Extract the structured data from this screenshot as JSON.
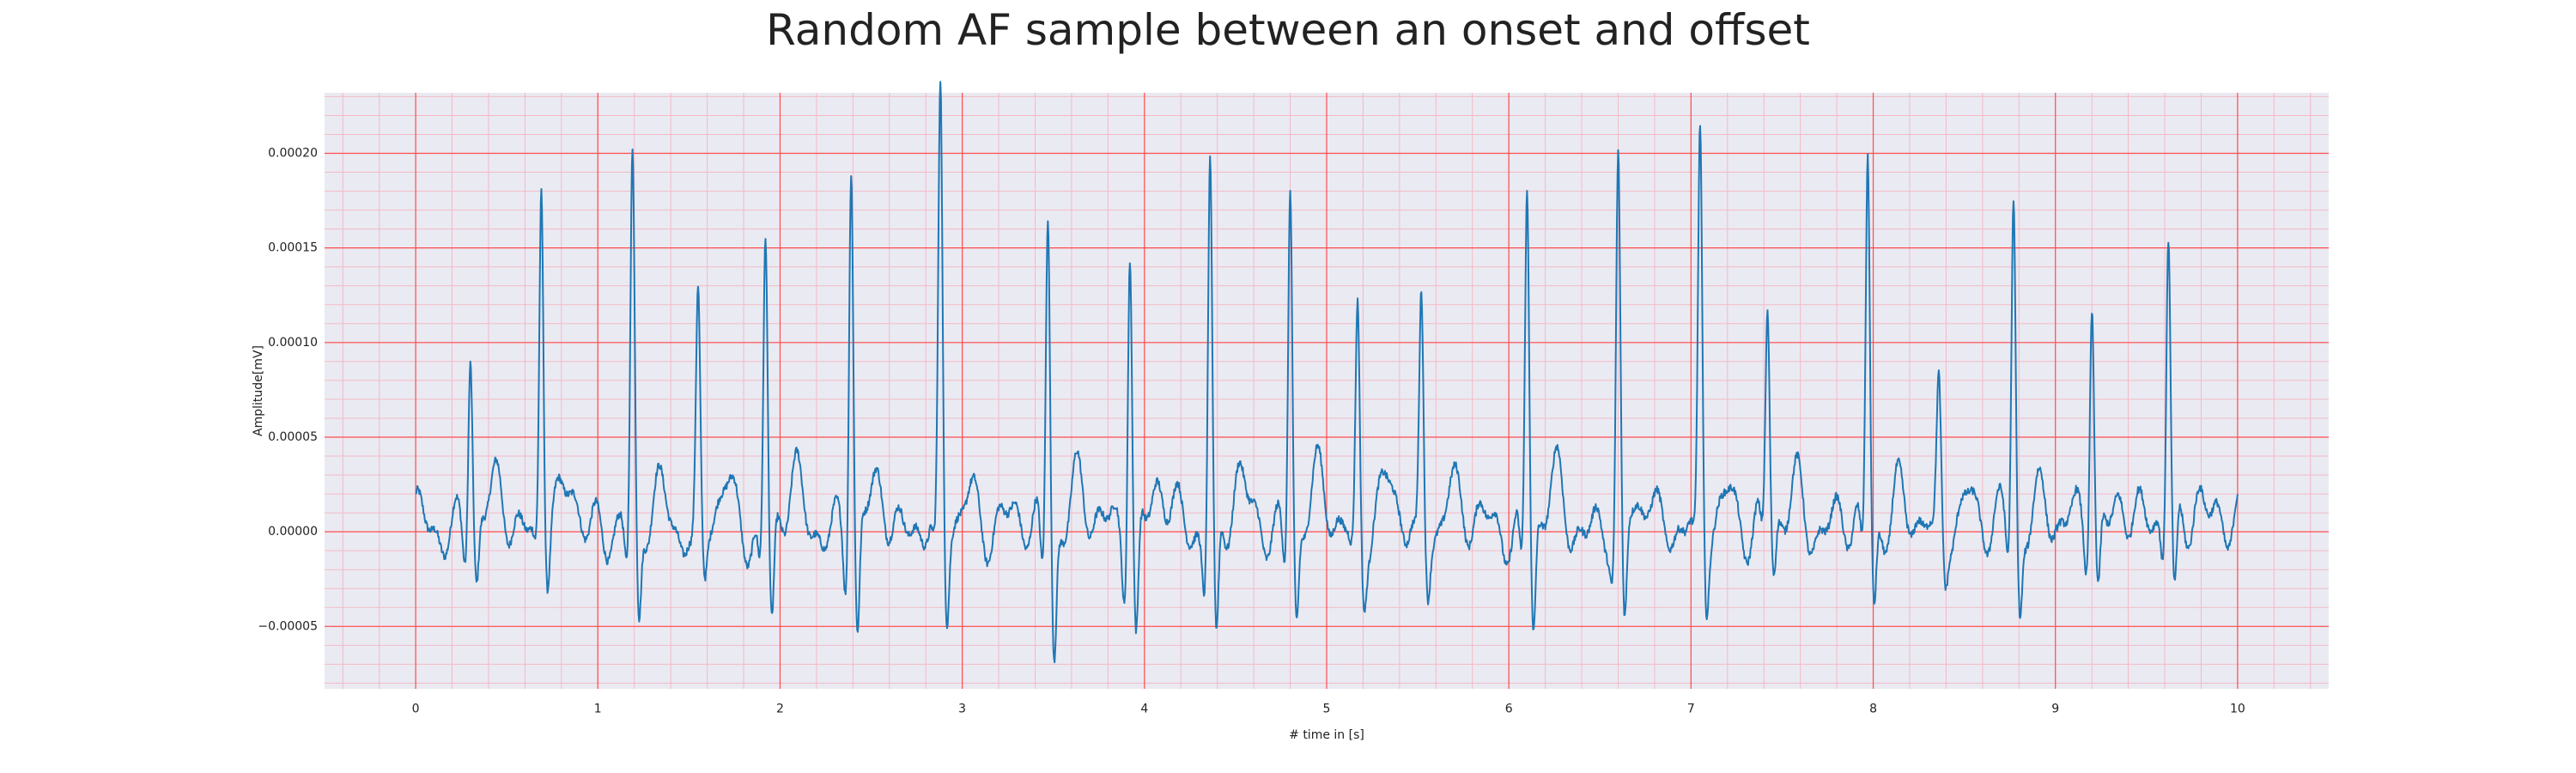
{
  "chart_data": {
    "type": "line",
    "title": "Random AF sample between an onset and offset",
    "xlabel": "# time in [s]",
    "ylabel": "Amplitude[mV]",
    "xlim": [
      -0.5,
      10.5
    ],
    "ylim": [
      -8.3e-05,
      0.000232
    ],
    "x_ticks": [
      0,
      1,
      2,
      3,
      4,
      5,
      6,
      7,
      8,
      9,
      10
    ],
    "x_tick_labels": [
      "0",
      "1",
      "2",
      "3",
      "4",
      "5",
      "6",
      "7",
      "8",
      "9",
      "10"
    ],
    "y_ticks": [
      -5e-05,
      0,
      5e-05,
      0.0001,
      0.00015,
      0.0002
    ],
    "y_tick_labels": [
      "−0.00005",
      "0.00000",
      "0.00005",
      "0.00010",
      "0.00015",
      "0.00020"
    ],
    "grid": true,
    "minor_grid": true,
    "colors": {
      "background": "#eaeaf2",
      "major_grid": "#ff4d4d",
      "minor_grid": "#f3b9c6",
      "line": "#1f77b4"
    },
    "series": [
      {
        "x_start": 0,
        "x_end": 10,
        "beat_times": [
          0.3,
          0.69,
          1.19,
          1.55,
          1.92,
          2.39,
          2.88,
          3.47,
          3.92,
          4.36,
          4.8,
          5.17,
          5.52,
          6.1,
          6.6,
          7.05,
          7.42,
          7.97,
          8.36,
          8.77,
          9.2,
          9.62
        ],
        "beat_peaks": [
          9.6e-05,
          0.000186,
          0.000188,
          0.000108,
          0.000153,
          0.000198,
          0.00022,
          0.000174,
          0.000161,
          0.000197,
          0.000188,
          0.000114,
          0.000115,
          0.00018,
          0.000184,
          0.000198,
          0.000111,
          0.000193,
          6.3e-05,
          0.000171,
          0.000124,
          0.000155
        ],
        "beat_troughs": [
          -3.5e-05,
          -2.5e-05,
          -5.8e-05,
          -2.8e-05,
          -5.5e-05,
          -6.5e-05,
          -5e-05,
          -6.5e-05,
          -6.2e-05,
          -6.8e-05,
          -4.8e-05,
          -3e-05,
          -2.8e-05,
          -5.7e-05,
          -6e-05,
          -4e-05,
          -3e-05,
          -4.5e-05,
          -2.5e-05,
          -4.8e-05,
          -4e-05,
          -4.5e-05
        ]
      }
    ]
  }
}
